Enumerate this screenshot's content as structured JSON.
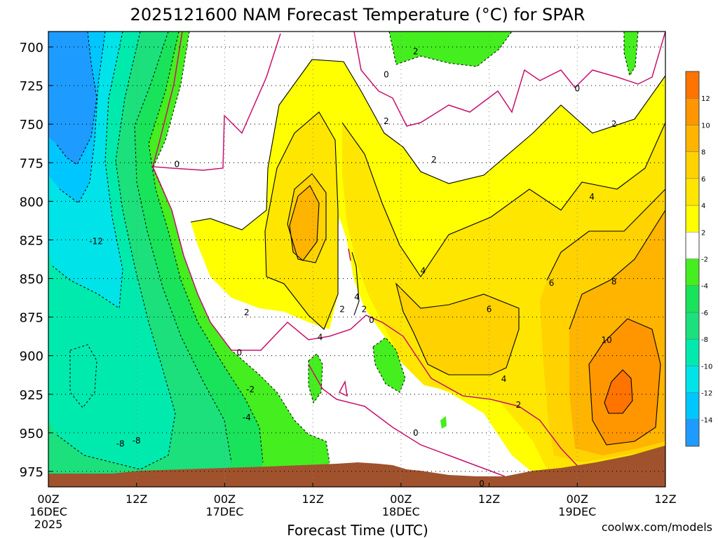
{
  "chart_data": {
    "type": "contour",
    "title": "2025121600 NAM Forecast Temperature (°C) for SPAR",
    "xlabel": "Forecast Time (UTC)",
    "ylabel": "",
    "y_pressure_levels": [
      700,
      725,
      750,
      775,
      800,
      825,
      850,
      875,
      900,
      925,
      950,
      975
    ],
    "ylim": [
      690,
      985
    ],
    "x_hours": [
      0,
      12,
      24,
      36,
      48,
      60,
      72,
      84
    ],
    "xlim": [
      0,
      84
    ],
    "x_ticks": [
      {
        "hour": 0,
        "label": "00Z",
        "date": "16DEC",
        "year": "2025"
      },
      {
        "hour": 12,
        "label": "12Z",
        "date": "",
        "year": ""
      },
      {
        "hour": 24,
        "label": "00Z",
        "date": "17DEC",
        "year": ""
      },
      {
        "hour": 36,
        "label": "12Z",
        "date": "",
        "year": ""
      },
      {
        "hour": 48,
        "label": "00Z",
        "date": "18DEC",
        "year": ""
      },
      {
        "hour": 60,
        "label": "12Z",
        "date": "",
        "year": ""
      },
      {
        "hour": 72,
        "label": "00Z",
        "date": "19DEC",
        "year": ""
      },
      {
        "hour": 84,
        "label": "12Z",
        "date": "",
        "year": ""
      }
    ],
    "grid": true,
    "colorbar": {
      "placement": "right",
      "bins": [
        {
          "lo": -16,
          "hi": -14,
          "color": "#1e9bff"
        },
        {
          "lo": -14,
          "hi": -12,
          "color": "#00c6ff"
        },
        {
          "lo": -12,
          "hi": -10,
          "color": "#00e3e8"
        },
        {
          "lo": -10,
          "hi": -8,
          "color": "#00eaad"
        },
        {
          "lo": -8,
          "hi": -6,
          "color": "#1be07c"
        },
        {
          "lo": -6,
          "hi": -4,
          "color": "#19e35a"
        },
        {
          "lo": -4,
          "hi": -2,
          "color": "#44ee1f"
        },
        {
          "lo": -2,
          "hi": 2,
          "color": "#ffffff"
        },
        {
          "lo": 2,
          "hi": 4,
          "color": "#ffff00"
        },
        {
          "lo": 4,
          "hi": 6,
          "color": "#ffe600"
        },
        {
          "lo": 6,
          "hi": 8,
          "color": "#ffd200"
        },
        {
          "lo": 8,
          "hi": 10,
          "color": "#ffb400"
        },
        {
          "lo": 10,
          "hi": 12,
          "color": "#ff9600"
        },
        {
          "lo": 12,
          "hi": 14,
          "color": "#ff7300"
        }
      ],
      "tick_labels": [
        "-14",
        "-12",
        "-10",
        "-8",
        "-6",
        "-4",
        "-2",
        "2",
        "4",
        "6",
        "8",
        "10",
        "12"
      ]
    },
    "contour_labels": [
      {
        "text": "-12",
        "hour": 6.5,
        "p": 826
      },
      {
        "text": "-8",
        "hour": 9.8,
        "p": 957
      },
      {
        "text": "-8",
        "hour": 12.0,
        "p": 955
      },
      {
        "text": "0",
        "hour": 17.5,
        "p": 776
      },
      {
        "text": "-2",
        "hour": 27.5,
        "p": 922
      },
      {
        "text": "-4",
        "hour": 27.0,
        "p": 940
      },
      {
        "text": "0",
        "hour": 26.0,
        "p": 898
      },
      {
        "text": "2",
        "hour": 27.0,
        "p": 872
      },
      {
        "text": "4",
        "hour": 37.0,
        "p": 888
      },
      {
        "text": "2",
        "hour": 40.0,
        "p": 870
      },
      {
        "text": "4",
        "hour": 42.0,
        "p": 862
      },
      {
        "text": "2",
        "hour": 43.0,
        "p": 870
      },
      {
        "text": "0",
        "hour": 44.0,
        "p": 877
      },
      {
        "text": "0",
        "hour": 46.0,
        "p": 718
      },
      {
        "text": "2",
        "hour": 46.0,
        "p": 748
      },
      {
        "text": "2",
        "hour": 50.0,
        "p": 703
      },
      {
        "text": "2",
        "hour": 52.5,
        "p": 773
      },
      {
        "text": "4",
        "hour": 51.0,
        "p": 845
      },
      {
        "text": "6",
        "hour": 60.0,
        "p": 870
      },
      {
        "text": "4",
        "hour": 62.0,
        "p": 915
      },
      {
        "text": "2",
        "hour": 64.0,
        "p": 932
      },
      {
        "text": "0",
        "hour": 50.0,
        "p": 950
      },
      {
        "text": "0",
        "hour": 59.0,
        "p": 983
      },
      {
        "text": "0",
        "hour": 72.0,
        "p": 727
      },
      {
        "text": "2",
        "hour": 77.0,
        "p": 750
      },
      {
        "text": "4",
        "hour": 74.0,
        "p": 797
      },
      {
        "text": "6",
        "hour": 68.5,
        "p": 853
      },
      {
        "text": "8",
        "hour": 77.0,
        "p": 852
      },
      {
        "text": "10",
        "hour": 76.0,
        "p": 890
      }
    ]
  },
  "credit": "coolwx.com/models"
}
